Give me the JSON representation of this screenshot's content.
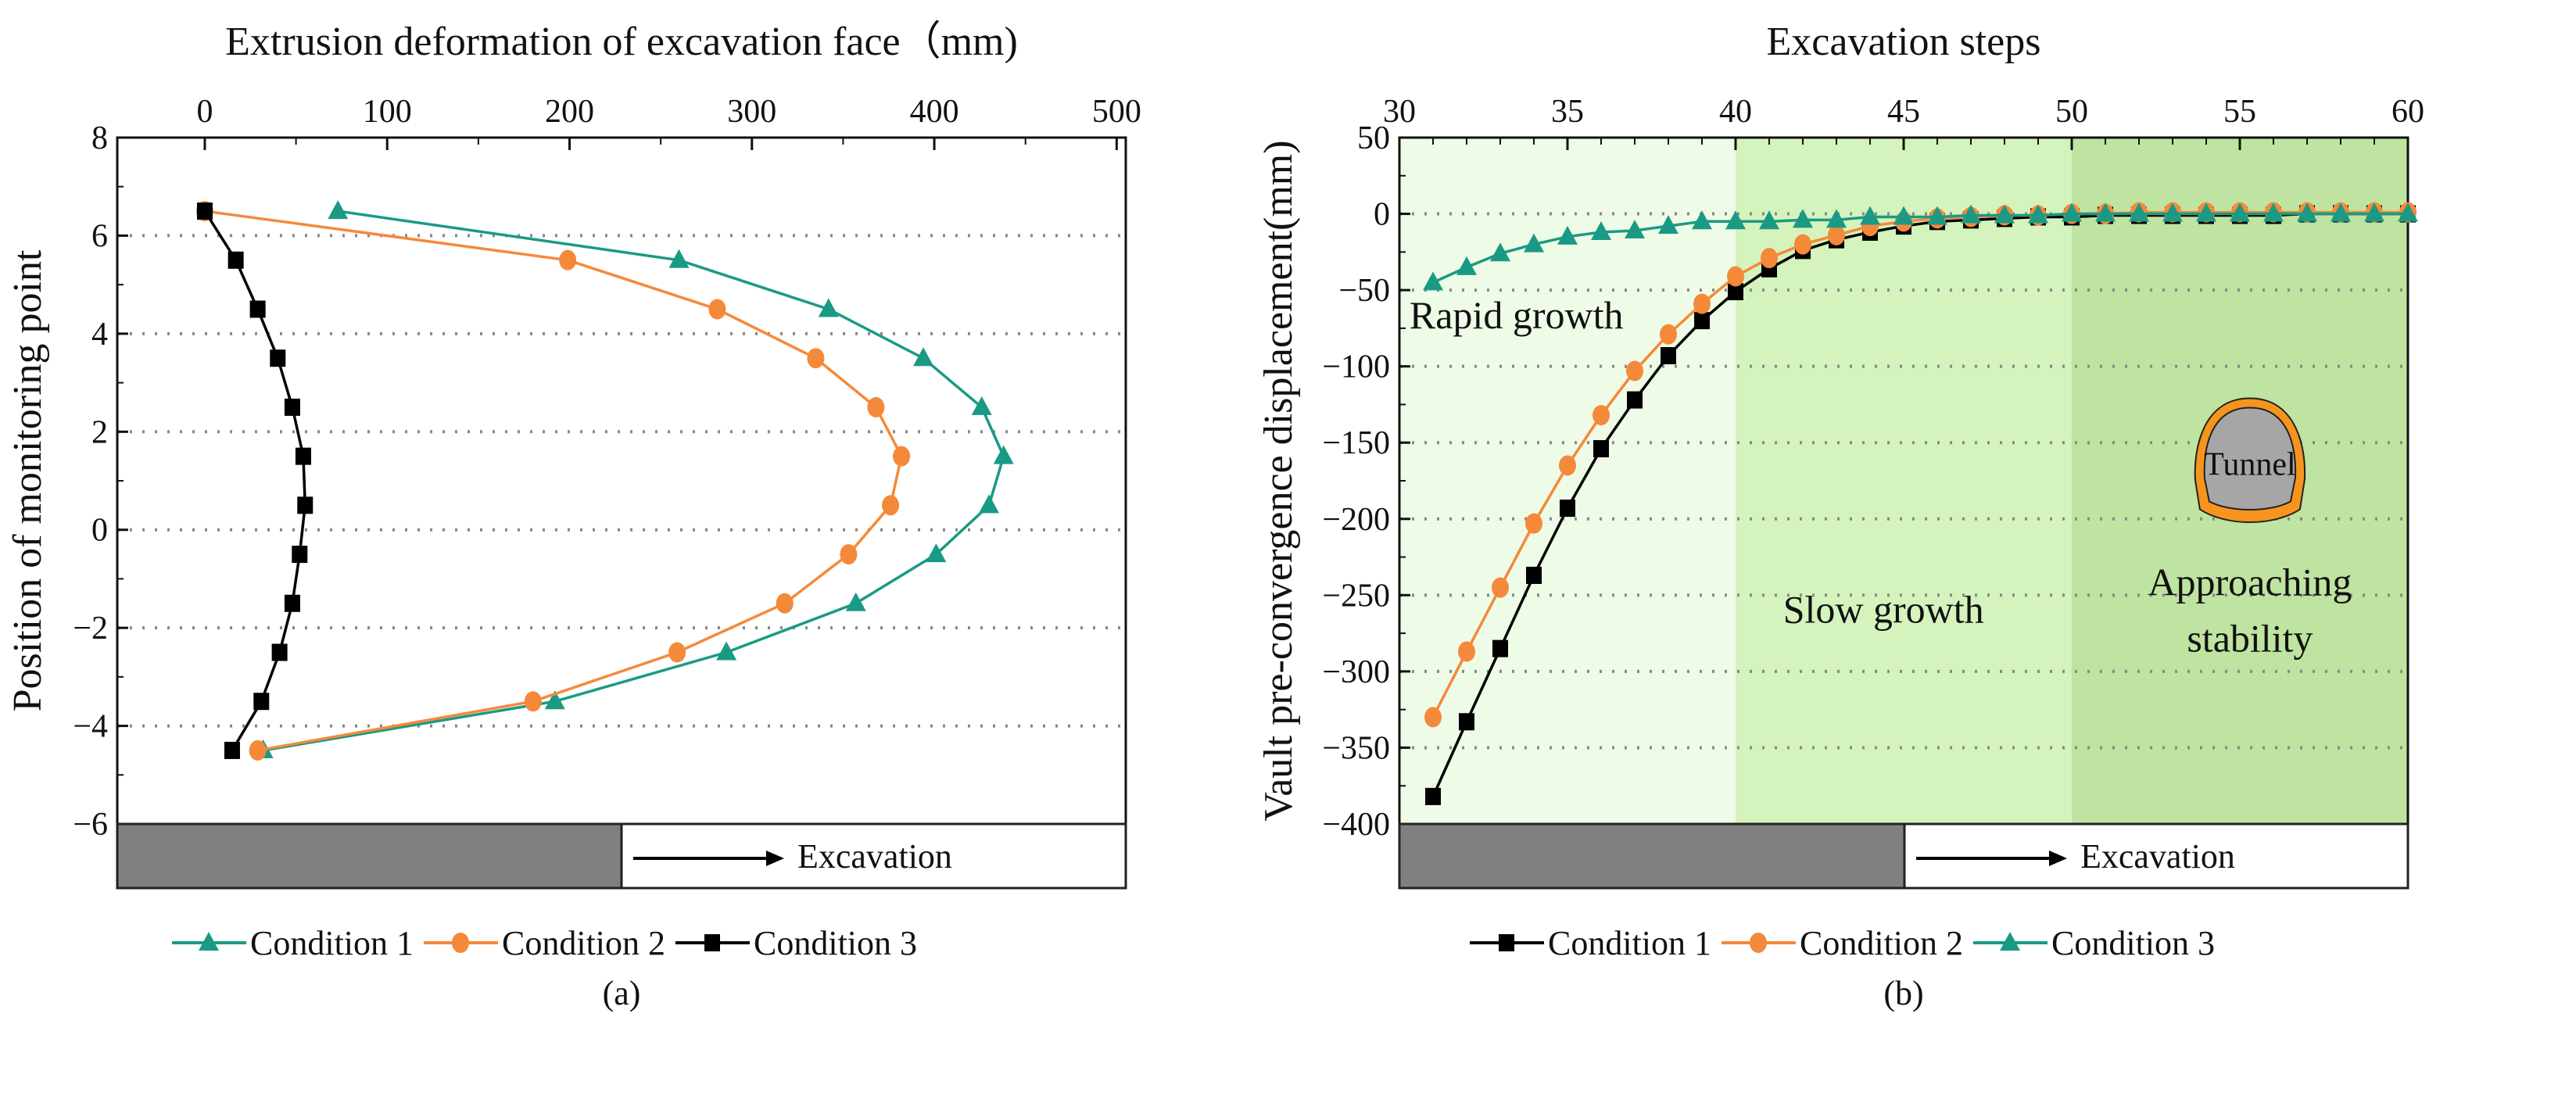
{
  "colors": {
    "condition_teal": "#1a9a85",
    "condition_orange": "#f5893a",
    "condition_black": "#000000",
    "zone_rapid": "#eefbe6",
    "zone_slow": "#d5f3bd",
    "zone_stable": "#bfe3a0",
    "band_gray": "#808080",
    "tunnel_ring": "#f7941d",
    "tunnel_core": "#a6a6a6"
  },
  "chart_data": [
    {
      "type": "line",
      "panel_label": "(a)",
      "title": "",
      "xlabel": "Extrusion deformation of excavation face（mm)",
      "ylabel": "Position of monitoring point",
      "xlim": [
        -48,
        505
      ],
      "ylim": [
        -6,
        8
      ],
      "xticks": [
        "0",
        "100",
        "200",
        "300",
        "400",
        "500"
      ],
      "yticks": [
        "8",
        "6",
        "4",
        "2",
        "0",
        "−2",
        "−4",
        "−6"
      ],
      "grid": "horizontal dotted",
      "legend_position": "bottom",
      "band_label": "Excavation",
      "y": [
        6.5,
        5.5,
        4.5,
        3.5,
        2.5,
        1.5,
        0.5,
        -0.5,
        -1.5,
        -2.5,
        -3.5,
        -4.5
      ],
      "series": [
        {
          "name": "Condition 1",
          "marker": "triangle",
          "color": "#1a9a85",
          "values": [
            73,
            260,
            342,
            394,
            426,
            438,
            430,
            401,
            357,
            286,
            192,
            32
          ]
        },
        {
          "name": "Condition 2",
          "marker": "circle",
          "color": "#f5893a",
          "values": [
            0,
            199,
            281,
            335,
            368,
            382,
            376,
            353,
            318,
            259,
            180,
            29
          ]
        },
        {
          "name": "Condition 3",
          "marker": "square",
          "color": "#000000",
          "values": [
            0,
            17,
            29,
            40,
            48,
            54,
            55,
            52,
            48,
            41,
            31,
            15
          ]
        }
      ]
    },
    {
      "type": "line",
      "panel_label": "(b)",
      "title": "",
      "xlabel": "Excavation steps",
      "ylabel": "Vault pre-convergence displacement(mm)",
      "xlim": [
        30,
        60
      ],
      "ylim": [
        -400,
        50
      ],
      "xticks": [
        "30",
        "35",
        "40",
        "45",
        "50",
        "55",
        "60"
      ],
      "yticks": [
        "50",
        "0",
        "−50",
        "−100",
        "−150",
        "−200",
        "−250",
        "−300",
        "−350",
        "−400"
      ],
      "grid": "horizontal dotted",
      "legend_position": "bottom",
      "band_label": "Excavation",
      "zones": [
        {
          "label": "Rapid growth",
          "from": 30,
          "to": 40
        },
        {
          "label": "Slow growth",
          "from": 40,
          "to": 50
        },
        {
          "label": "Approaching",
          "label2": "stability",
          "from": 50,
          "to": 60
        }
      ],
      "inset_label": "Tunnel",
      "x": [
        31,
        32,
        33,
        34,
        35,
        36,
        37,
        38,
        39,
        40,
        41,
        42,
        43,
        44,
        45,
        46,
        47,
        48,
        49,
        50,
        51,
        52,
        53,
        54,
        55,
        56,
        57,
        58,
        59,
        60
      ],
      "series": [
        {
          "name": "Condition 1",
          "marker": "square",
          "color": "#000000",
          "values": [
            -382,
            -333,
            -285,
            -237,
            -193,
            -154,
            -122,
            -93,
            -70,
            -51,
            -36,
            -24,
            -17,
            -12,
            -8,
            -5,
            -4,
            -3,
            -2,
            -2,
            -1,
            -1,
            -1,
            -1,
            -1,
            -1,
            0,
            0,
            0,
            0
          ]
        },
        {
          "name": "Condition 2",
          "marker": "circle",
          "color": "#f5893a",
          "values": [
            -330,
            -287,
            -245,
            -203,
            -165,
            -132,
            -103,
            -79,
            -59,
            -41,
            -29,
            -20,
            -14,
            -8,
            -5,
            -3,
            -2,
            -1,
            -1,
            0,
            0,
            1,
            1,
            1,
            1,
            1,
            1,
            1,
            1,
            1
          ]
        },
        {
          "name": "Condition 3",
          "marker": "triangle",
          "color": "#1a9a85",
          "values": [
            -45,
            -35,
            -26,
            -20,
            -15,
            -12,
            -11,
            -8,
            -5,
            -5,
            -5,
            -4,
            -4,
            -2,
            -2,
            -2,
            -1,
            -1,
            -1,
            0,
            0,
            0,
            0,
            0,
            0,
            0,
            0,
            0,
            0,
            0
          ]
        }
      ]
    }
  ]
}
